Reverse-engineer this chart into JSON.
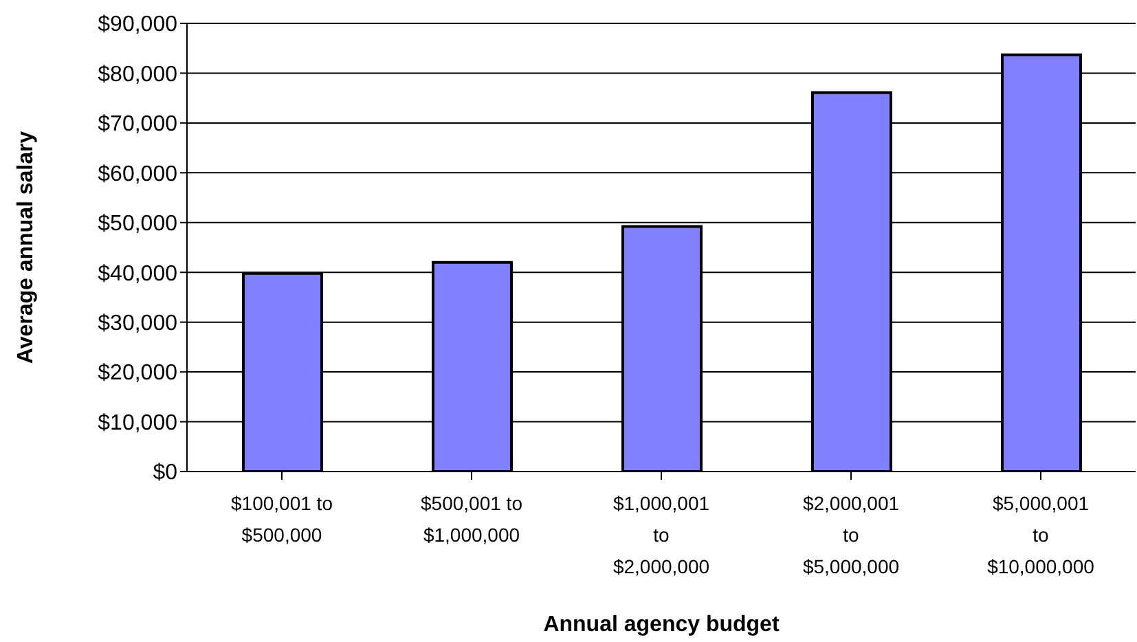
{
  "chart_data": {
    "type": "bar",
    "xlabel": "Annual agency budget",
    "ylabel": "Average annual salary",
    "categories": [
      "$100,001 to\n$500,000",
      "$500,001 to\n$1,000,000",
      "$1,000,001\nto\n$2,000,000",
      "$2,000,001\nto\n$5,000,000",
      "$5,000,001\nto\n$10,000,000"
    ],
    "values": [
      39800,
      42000,
      49200,
      76100,
      83700
    ],
    "color": "#8080ff",
    "ylim": [
      0,
      90000
    ],
    "yticks": [
      {
        "value": 0,
        "label": "$0"
      },
      {
        "value": 10000,
        "label": "$10,000"
      },
      {
        "value": 20000,
        "label": "$20,000"
      },
      {
        "value": 30000,
        "label": "$30,000"
      },
      {
        "value": 40000,
        "label": "$40,000"
      },
      {
        "value": 50000,
        "label": "$50,000"
      },
      {
        "value": 60000,
        "label": "$60,000"
      },
      {
        "value": 70000,
        "label": "$70,000"
      },
      {
        "value": 80000,
        "label": "$80,000"
      },
      {
        "value": 90000,
        "label": "$90,000"
      }
    ],
    "grid": "y",
    "legend": false
  }
}
